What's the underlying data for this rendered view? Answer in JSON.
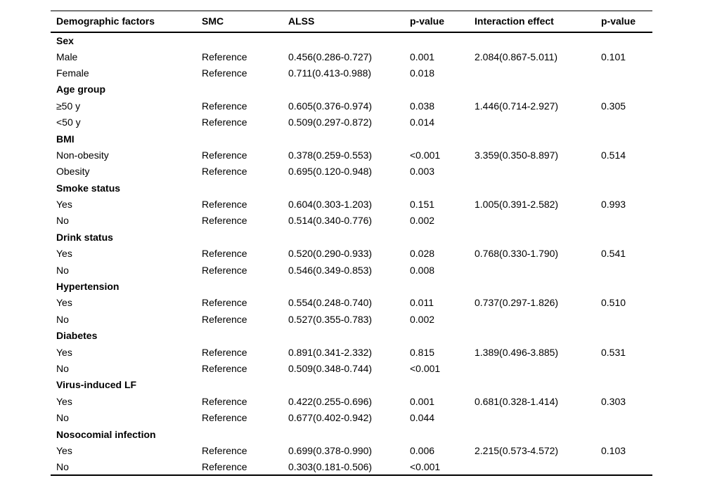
{
  "table": {
    "headers": [
      "Demographic factors",
      "SMC",
      "ALSS",
      "p-value",
      "Interaction effect",
      "p-value"
    ],
    "column_keys": [
      "factor",
      "smc",
      "alss",
      "p_value",
      "interaction_effect",
      "p_value_interaction"
    ],
    "groups": [
      {
        "label": "Sex",
        "rows": [
          {
            "cells": [
              "Male",
              "Reference",
              "0.456(0.286-0.727)",
              "0.001",
              "2.084(0.867-5.011)",
              "0.101"
            ]
          },
          {
            "cells": [
              "Female",
              "Reference",
              "0.711(0.413-0.988)",
              "0.018",
              "",
              ""
            ]
          }
        ]
      },
      {
        "label": "Age group",
        "rows": [
          {
            "cells": [
              "≥50 y",
              "Reference",
              "0.605(0.376-0.974)",
              "0.038",
              "1.446(0.714-2.927)",
              "0.305"
            ]
          },
          {
            "cells": [
              "<50 y",
              "Reference",
              "0.509(0.297-0.872)",
              "0.014",
              "",
              ""
            ]
          }
        ]
      },
      {
        "label": "BMI",
        "rows": [
          {
            "cells": [
              "Non-obesity",
              "Reference",
              "0.378(0.259-0.553)",
              "<0.001",
              "3.359(0.350-8.897)",
              "0.514"
            ]
          },
          {
            "cells": [
              "Obesity",
              "Reference",
              "0.695(0.120-0.948)",
              "0.003",
              "",
              ""
            ]
          }
        ]
      },
      {
        "label": "Smoke status",
        "rows": [
          {
            "cells": [
              "Yes",
              "Reference",
              "0.604(0.303-1.203)",
              "0.151",
              "1.005(0.391-2.582)",
              "0.993"
            ]
          },
          {
            "cells": [
              "No",
              "Reference",
              "0.514(0.340-0.776)",
              "0.002",
              "",
              ""
            ]
          }
        ]
      },
      {
        "label": "Drink status",
        "rows": [
          {
            "cells": [
              "Yes",
              "Reference",
              "0.520(0.290-0.933)",
              "0.028",
              "0.768(0.330-1.790)",
              "0.541"
            ]
          },
          {
            "cells": [
              "No",
              "Reference",
              "0.546(0.349-0.853)",
              "0.008",
              "",
              ""
            ]
          }
        ]
      },
      {
        "label": "Hypertension",
        "rows": [
          {
            "cells": [
              "Yes",
              "Reference",
              "0.554(0.248-0.740)",
              "0.011",
              "0.737(0.297-1.826)",
              "0.510"
            ]
          },
          {
            "cells": [
              "No",
              "Reference",
              "0.527(0.355-0.783)",
              "0.002",
              "",
              ""
            ]
          }
        ]
      },
      {
        "label": "Diabetes",
        "rows": [
          {
            "cells": [
              "Yes",
              "Reference",
              "0.891(0.341-2.332)",
              "0.815",
              "1.389(0.496-3.885)",
              "0.531"
            ]
          },
          {
            "cells": [
              "No",
              "Reference",
              "0.509(0.348-0.744)",
              "<0.001",
              "",
              ""
            ]
          }
        ]
      },
      {
        "label": "Virus-induced LF",
        "rows": [
          {
            "cells": [
              "Yes",
              "Reference",
              "0.422(0.255-0.696)",
              "0.001",
              "0.681(0.328-1.414)",
              "0.303"
            ]
          },
          {
            "cells": [
              "No",
              "Reference",
              "0.677(0.402-0.942)",
              "0.044",
              "",
              ""
            ]
          }
        ]
      },
      {
        "label": "Nosocomial infection",
        "rows": [
          {
            "cells": [
              "Yes",
              "Reference",
              "0.699(0.378-0.990)",
              "0.006",
              "2.215(0.573-4.572)",
              "0.103"
            ]
          },
          {
            "cells": [
              "No",
              "Reference",
              "0.303(0.181-0.506)",
              "<0.001",
              "",
              ""
            ]
          }
        ]
      }
    ]
  }
}
